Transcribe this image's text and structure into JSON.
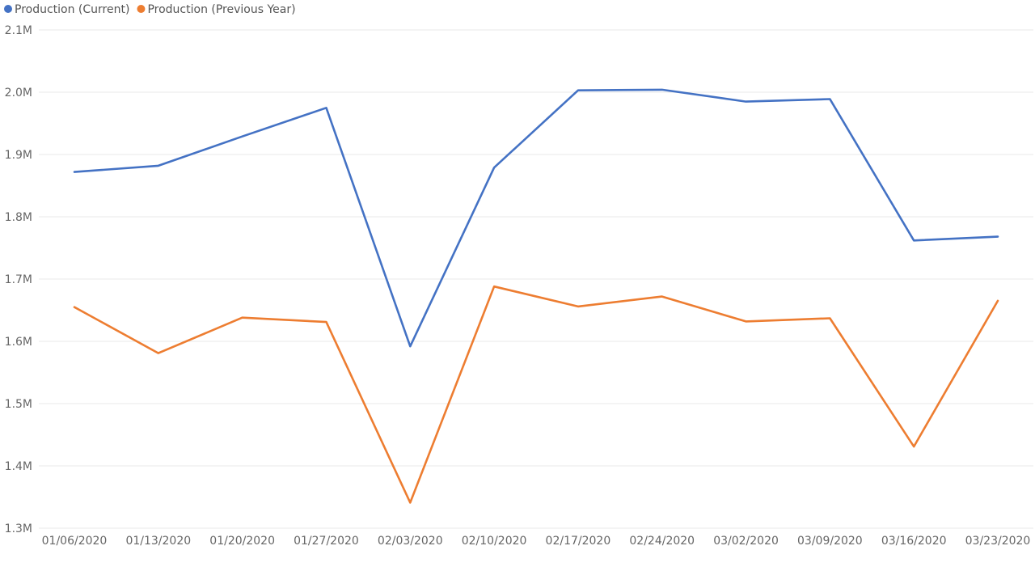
{
  "chart_data": {
    "type": "line",
    "title": "",
    "xlabel": "",
    "ylabel": "",
    "grid": true,
    "legend_position": "top-left",
    "categories": [
      "01/06/2020",
      "01/13/2020",
      "01/20/2020",
      "01/27/2020",
      "02/03/2020",
      "02/10/2020",
      "02/17/2020",
      "02/24/2020",
      "03/02/2020",
      "03/09/2020",
      "03/16/2020",
      "03/23/2020"
    ],
    "ylim": [
      1300000,
      2100000
    ],
    "yticks": [
      {
        "value": 1300000,
        "label": "1.3M"
      },
      {
        "value": 1400000,
        "label": "1.4M"
      },
      {
        "value": 1500000,
        "label": "1.5M"
      },
      {
        "value": 1600000,
        "label": "1.6M"
      },
      {
        "value": 1700000,
        "label": "1.7M"
      },
      {
        "value": 1800000,
        "label": "1.8M"
      },
      {
        "value": 1900000,
        "label": "1.9M"
      },
      {
        "value": 2000000,
        "label": "2.0M"
      },
      {
        "value": 2100000,
        "label": "2.1M"
      }
    ],
    "series": [
      {
        "name": "Production (Current)",
        "color": "#4472C4",
        "values": [
          1872000,
          1882000,
          1929000,
          1975000,
          1592000,
          1879000,
          2003000,
          2004000,
          1985000,
          1989000,
          1762000,
          1768000
        ]
      },
      {
        "name": "Production (Previous Year)",
        "color": "#ED7D31",
        "values": [
          1655000,
          1581000,
          1638000,
          1631000,
          1341000,
          1688000,
          1656000,
          1672000,
          1632000,
          1637000,
          1431000,
          1665000
        ]
      }
    ]
  }
}
